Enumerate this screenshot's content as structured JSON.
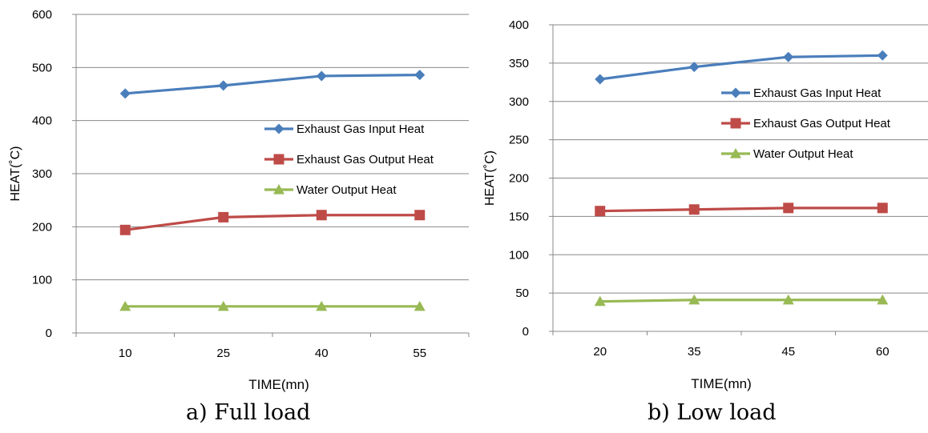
{
  "chart_data": [
    {
      "type": "line",
      "caption": "a) Full load",
      "xlabel": "TIME(mn)",
      "ylabel": "HEAT(˚C)",
      "categories": [
        "10",
        "25",
        "40",
        "55"
      ],
      "ylim": [
        0,
        600
      ],
      "yticks": [
        0,
        100,
        200,
        300,
        400,
        500,
        600
      ],
      "grid": true,
      "legend_position": "center-right",
      "series": [
        {
          "name": "Exhaust Gas Input Heat",
          "color": "#4a7ebb",
          "marker": "diamond",
          "values": [
            451,
            466,
            484,
            486
          ]
        },
        {
          "name": "Exhaust Gas Output Heat",
          "color": "#be4b48",
          "marker": "square",
          "values": [
            194,
            218,
            222,
            222
          ]
        },
        {
          "name": "Water Output Heat",
          "color": "#98b954",
          "marker": "triangle",
          "values": [
            50,
            50,
            50,
            50
          ]
        }
      ]
    },
    {
      "type": "line",
      "caption": "b) Low load",
      "xlabel": "TIME(mn)",
      "ylabel": "HEAT(˚C)",
      "categories": [
        "20",
        "35",
        "45",
        "60"
      ],
      "ylim": [
        0,
        400
      ],
      "yticks": [
        0,
        50,
        100,
        150,
        200,
        250,
        300,
        350,
        400
      ],
      "grid": true,
      "legend_position": "center-right",
      "series": [
        {
          "name": "Exhaust Gas Input Heat",
          "color": "#4a7ebb",
          "marker": "diamond",
          "values": [
            329,
            345,
            358,
            360
          ]
        },
        {
          "name": "Exhaust Gas Output Heat",
          "color": "#be4b48",
          "marker": "square",
          "values": [
            157,
            159,
            161,
            161
          ]
        },
        {
          "name": "Water Output Heat",
          "color": "#98b954",
          "marker": "triangle",
          "values": [
            39,
            41,
            41,
            41
          ]
        }
      ]
    }
  ]
}
